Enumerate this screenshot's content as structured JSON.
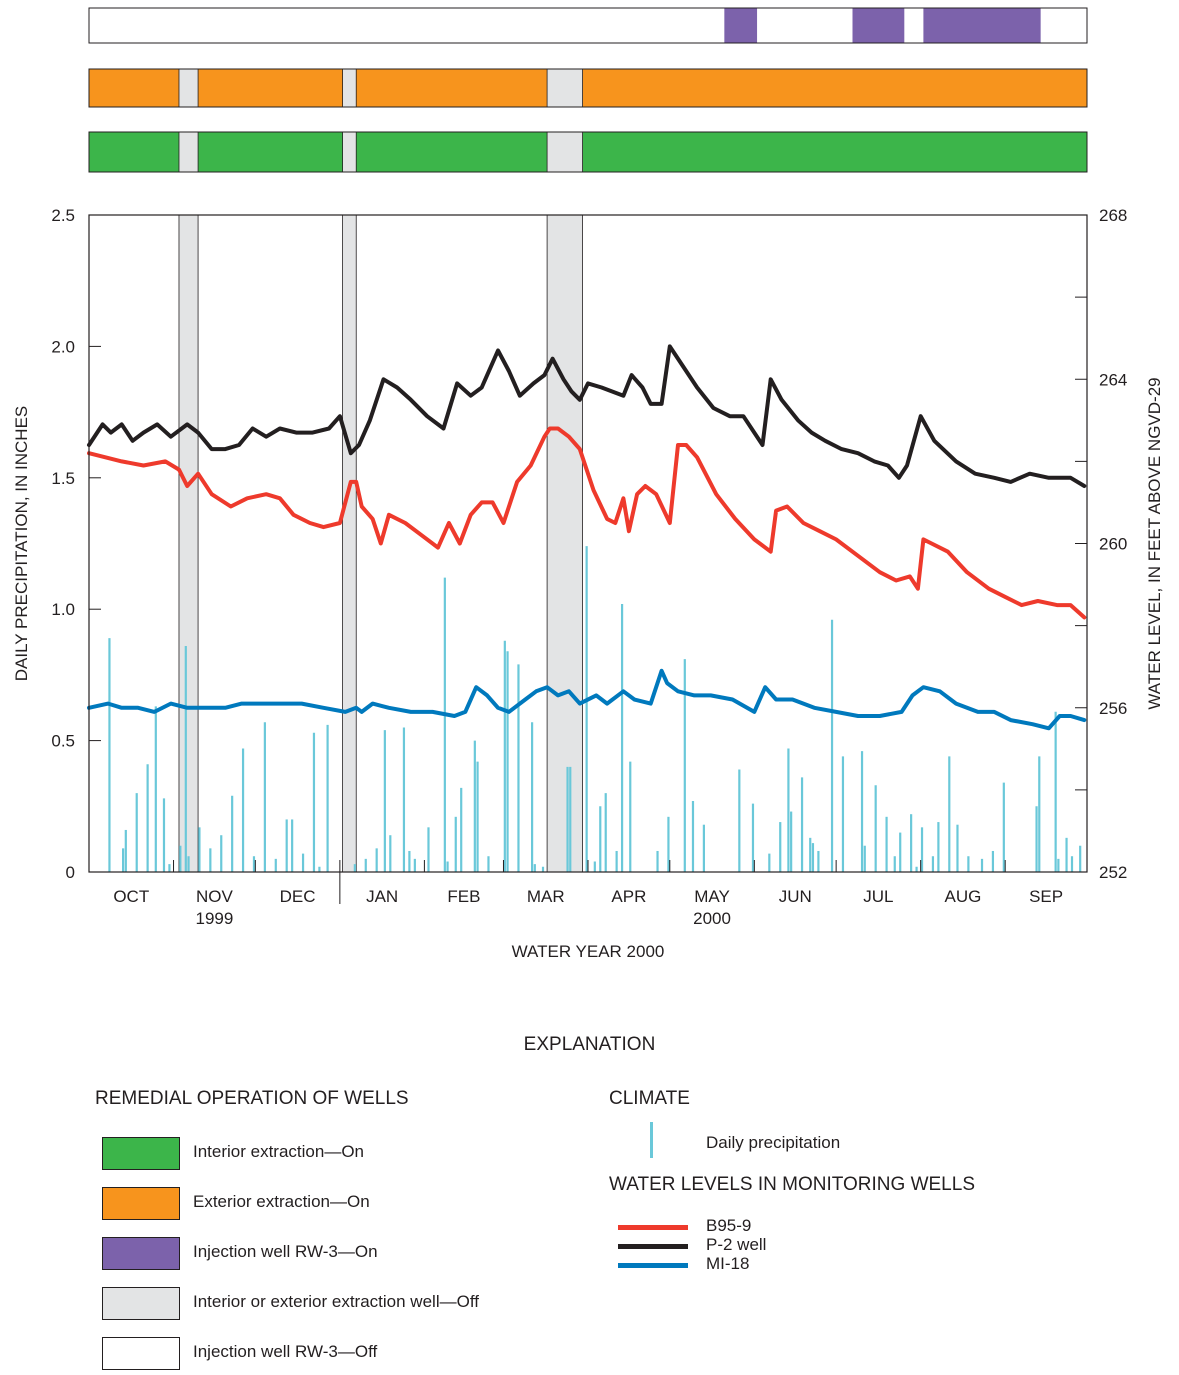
{
  "chart_data": {
    "type": "bar+line",
    "xlabel": "WATER YEAR 2000",
    "ylabel_left": "DAILY PRECIPITATION, IN INCHES",
    "ylabel_right": "WATER LEVEL, IN FEET ABOVE NGVD-29",
    "ylim_left": [
      0,
      2.5
    ],
    "ylim_right": [
      252,
      268
    ],
    "left_ticks": [
      "0",
      "0.5",
      "1.0",
      "1.5",
      "2.0",
      "2.5"
    ],
    "right_ticks": [
      "252",
      "256",
      "260",
      "264",
      "268"
    ],
    "x_days": 366,
    "months": [
      {
        "label": "OCT",
        "sub": ""
      },
      {
        "label": "NOV",
        "sub": "1999"
      },
      {
        "label": "DEC",
        "sub": ""
      },
      {
        "label": "JAN",
        "sub": ""
      },
      {
        "label": "FEB",
        "sub": ""
      },
      {
        "label": "MAR",
        "sub": ""
      },
      {
        "label": "APR",
        "sub": ""
      },
      {
        "label": "MAY",
        "sub": "2000"
      },
      {
        "label": "JUN",
        "sub": ""
      },
      {
        "label": "JUL",
        "sub": ""
      },
      {
        "label": "AUG",
        "sub": ""
      },
      {
        "label": "SEP",
        "sub": ""
      }
    ],
    "off_periods": [
      [
        33,
        40
      ],
      [
        93,
        98
      ],
      [
        168,
        181
      ]
    ],
    "injection_on_periods": [
      [
        233,
        245
      ],
      [
        280,
        299
      ],
      [
        306,
        349
      ]
    ],
    "precipitation": {
      "name": "Daily precipitation",
      "color": "#6ac8d9",
      "day": [
        7,
        12,
        13,
        17,
        21,
        24,
        27,
        29,
        33,
        35,
        36,
        40,
        44,
        48,
        52,
        56,
        60,
        64,
        68,
        72,
        74,
        78,
        82,
        84,
        87,
        97,
        101,
        105,
        108,
        110,
        115,
        117,
        119,
        124,
        130,
        131,
        134,
        136,
        141,
        142,
        146,
        152,
        153,
        157,
        162,
        163,
        166,
        175,
        176,
        182,
        185,
        187,
        189,
        193,
        195,
        198,
        208,
        212,
        218,
        221,
        225,
        238,
        243,
        249,
        253,
        256,
        257,
        261,
        264,
        265,
        267,
        272,
        276,
        283,
        284,
        288,
        292,
        295,
        297,
        301,
        303,
        305,
        309,
        311,
        315,
        318,
        322,
        327,
        331,
        335,
        347,
        348,
        354,
        355,
        358,
        360,
        363
      ],
      "value": [
        0.89,
        0.09,
        0.16,
        0.3,
        0.41,
        0.63,
        0.28,
        0.03,
        0.1,
        0.86,
        0.06,
        0.17,
        0.09,
        0.14,
        0.29,
        0.47,
        0.06,
        0.57,
        0.05,
        0.2,
        0.2,
        0.07,
        0.53,
        0.02,
        0.56,
        0.03,
        0.05,
        0.09,
        0.54,
        0.14,
        0.55,
        0.08,
        0.05,
        0.17,
        1.12,
        0.04,
        0.21,
        0.32,
        0.5,
        0.42,
        0.06,
        0.88,
        0.84,
        0.79,
        0.57,
        0.03,
        0.02,
        0.4,
        0.4,
        1.24,
        0.04,
        0.25,
        0.3,
        0.08,
        1.02,
        0.42,
        0.08,
        0.21,
        0.81,
        0.27,
        0.18,
        0.39,
        0.26,
        0.07,
        0.19,
        0.47,
        0.23,
        0.36,
        0.13,
        0.11,
        0.08,
        0.96,
        0.44,
        0.46,
        0.1,
        0.33,
        0.21,
        0.06,
        0.15,
        0.22,
        0.02,
        0.17,
        0.06,
        0.19,
        0.44,
        0.18,
        0.06,
        0.05,
        0.08,
        0.34,
        0.25,
        0.44,
        0.61,
        0.05,
        0.13,
        0.06,
        0.1
      ]
    },
    "series": [
      {
        "name": "P-2 well",
        "color": "#231f20",
        "day": [
          0,
          5,
          8,
          12,
          16,
          20,
          25,
          30,
          36,
          40,
          45,
          50,
          55,
          60,
          65,
          70,
          76,
          82,
          88,
          92,
          96,
          99,
          103,
          108,
          113,
          118,
          124,
          130,
          135,
          140,
          144,
          150,
          154,
          158,
          163,
          167,
          170,
          174,
          177,
          180,
          183,
          188,
          192,
          196,
          199,
          203,
          206,
          210,
          213,
          218,
          223,
          229,
          235,
          240,
          247,
          250,
          254,
          260,
          265,
          270,
          276,
          282,
          288,
          293,
          297,
          300,
          305,
          310,
          318,
          325,
          332,
          338,
          345,
          352,
          360,
          365
        ],
        "value": [
          262.4,
          262.9,
          262.7,
          262.9,
          262.5,
          262.7,
          262.9,
          262.6,
          262.9,
          262.7,
          262.3,
          262.3,
          262.4,
          262.8,
          262.6,
          262.8,
          262.7,
          262.7,
          262.8,
          263.1,
          262.2,
          262.4,
          263.0,
          264.0,
          263.8,
          263.5,
          263.1,
          262.8,
          263.9,
          263.6,
          263.8,
          264.7,
          264.2,
          263.6,
          263.9,
          264.1,
          264.5,
          264.0,
          263.7,
          263.5,
          263.9,
          263.8,
          263.7,
          263.6,
          264.1,
          263.8,
          263.4,
          263.4,
          264.8,
          264.3,
          263.8,
          263.3,
          263.1,
          263.1,
          262.4,
          264.0,
          263.5,
          263.0,
          262.7,
          262.5,
          262.3,
          262.2,
          262.0,
          261.9,
          261.6,
          261.9,
          263.1,
          262.5,
          262.0,
          261.7,
          261.6,
          261.5,
          261.7,
          261.6,
          261.6,
          261.4
        ]
      },
      {
        "name": "B95-9",
        "color": "#ee3a2c",
        "day": [
          0,
          6,
          12,
          20,
          28,
          33,
          36,
          40,
          45,
          52,
          58,
          65,
          70,
          75,
          81,
          86,
          92,
          96,
          98,
          100,
          104,
          107,
          110,
          116,
          122,
          128,
          132,
          136,
          140,
          144,
          148,
          152,
          157,
          162,
          167,
          169,
          172,
          176,
          180,
          185,
          190,
          193,
          196,
          198,
          201,
          204,
          208,
          213,
          216,
          219,
          223,
          230,
          237,
          244,
          250,
          252,
          256,
          262,
          268,
          274,
          282,
          290,
          296,
          301,
          304,
          306,
          309,
          315,
          322,
          330,
          336,
          342,
          348,
          355,
          360,
          365
        ],
        "value": [
          262.2,
          262.1,
          262.0,
          261.9,
          262.0,
          261.8,
          261.4,
          261.7,
          261.2,
          260.9,
          261.1,
          261.2,
          261.1,
          260.7,
          260.5,
          260.4,
          260.5,
          261.5,
          261.5,
          260.9,
          260.6,
          260.0,
          260.7,
          260.5,
          260.2,
          259.9,
          260.5,
          260.0,
          260.7,
          261.0,
          261.0,
          260.5,
          261.5,
          261.9,
          262.6,
          262.8,
          262.8,
          262.6,
          262.3,
          261.3,
          260.6,
          260.5,
          261.1,
          260.3,
          261.2,
          261.4,
          261.2,
          260.5,
          262.4,
          262.4,
          262.1,
          261.2,
          260.6,
          260.1,
          259.8,
          260.8,
          260.9,
          260.5,
          260.3,
          260.1,
          259.7,
          259.3,
          259.1,
          259.2,
          258.9,
          260.1,
          260.0,
          259.8,
          259.3,
          258.9,
          258.7,
          258.5,
          258.6,
          258.5,
          258.5,
          258.2
        ]
      },
      {
        "name": "MI-18",
        "color": "#0079bd",
        "day": [
          0,
          7,
          12,
          18,
          24,
          30,
          36,
          42,
          50,
          56,
          62,
          70,
          78,
          86,
          94,
          98,
          100,
          104,
          110,
          118,
          126,
          134,
          138,
          142,
          146,
          150,
          154,
          160,
          164,
          168,
          172,
          176,
          180,
          186,
          190,
          196,
          200,
          206,
          210,
          212,
          216,
          222,
          228,
          236,
          244,
          248,
          252,
          258,
          266,
          274,
          282,
          290,
          298,
          302,
          306,
          312,
          318,
          326,
          332,
          338,
          346,
          352,
          356,
          360,
          365
        ],
        "value": [
          256.0,
          256.1,
          256.0,
          256.0,
          255.9,
          256.1,
          256.0,
          256.0,
          256.0,
          256.1,
          256.1,
          256.1,
          256.1,
          256.0,
          255.9,
          256.0,
          255.9,
          256.1,
          256.0,
          255.9,
          255.9,
          255.8,
          255.9,
          256.5,
          256.3,
          256.0,
          255.9,
          256.2,
          256.4,
          256.5,
          256.3,
          256.4,
          256.1,
          256.3,
          256.1,
          256.4,
          256.2,
          256.1,
          256.9,
          256.6,
          256.4,
          256.3,
          256.3,
          256.2,
          255.9,
          256.5,
          256.2,
          256.2,
          256.0,
          255.9,
          255.8,
          255.8,
          255.9,
          256.3,
          256.5,
          256.4,
          256.1,
          255.9,
          255.9,
          255.7,
          255.6,
          255.5,
          255.8,
          255.8,
          255.7
        ]
      }
    ]
  },
  "explanation": {
    "title": "EXPLANATION",
    "remedial": {
      "title": "REMEDIAL OPERATION OF WELLS",
      "items": [
        {
          "label": "Interior extraction—On",
          "color": "#3cb54a"
        },
        {
          "label": "Exterior extraction—On",
          "color": "#f7941d"
        },
        {
          "label": "Injection well RW-3—On",
          "color": "#7c62ab"
        },
        {
          "label": "Interior or exterior extraction well—Off",
          "color": "#e3e4e5"
        },
        {
          "label": "Injection well RW-3—Off",
          "color": "#ffffff"
        }
      ]
    },
    "climate": {
      "title": "CLIMATE",
      "precip_label": "Daily precipitation"
    },
    "water_levels": {
      "title": "WATER LEVELS IN MONITORING WELLS",
      "items": [
        {
          "label": "B95-9",
          "color": "#ee3a2c"
        },
        {
          "label": "P-2 well",
          "color": "#231f20"
        },
        {
          "label": "MI-18",
          "color": "#0079bd"
        }
      ]
    }
  }
}
